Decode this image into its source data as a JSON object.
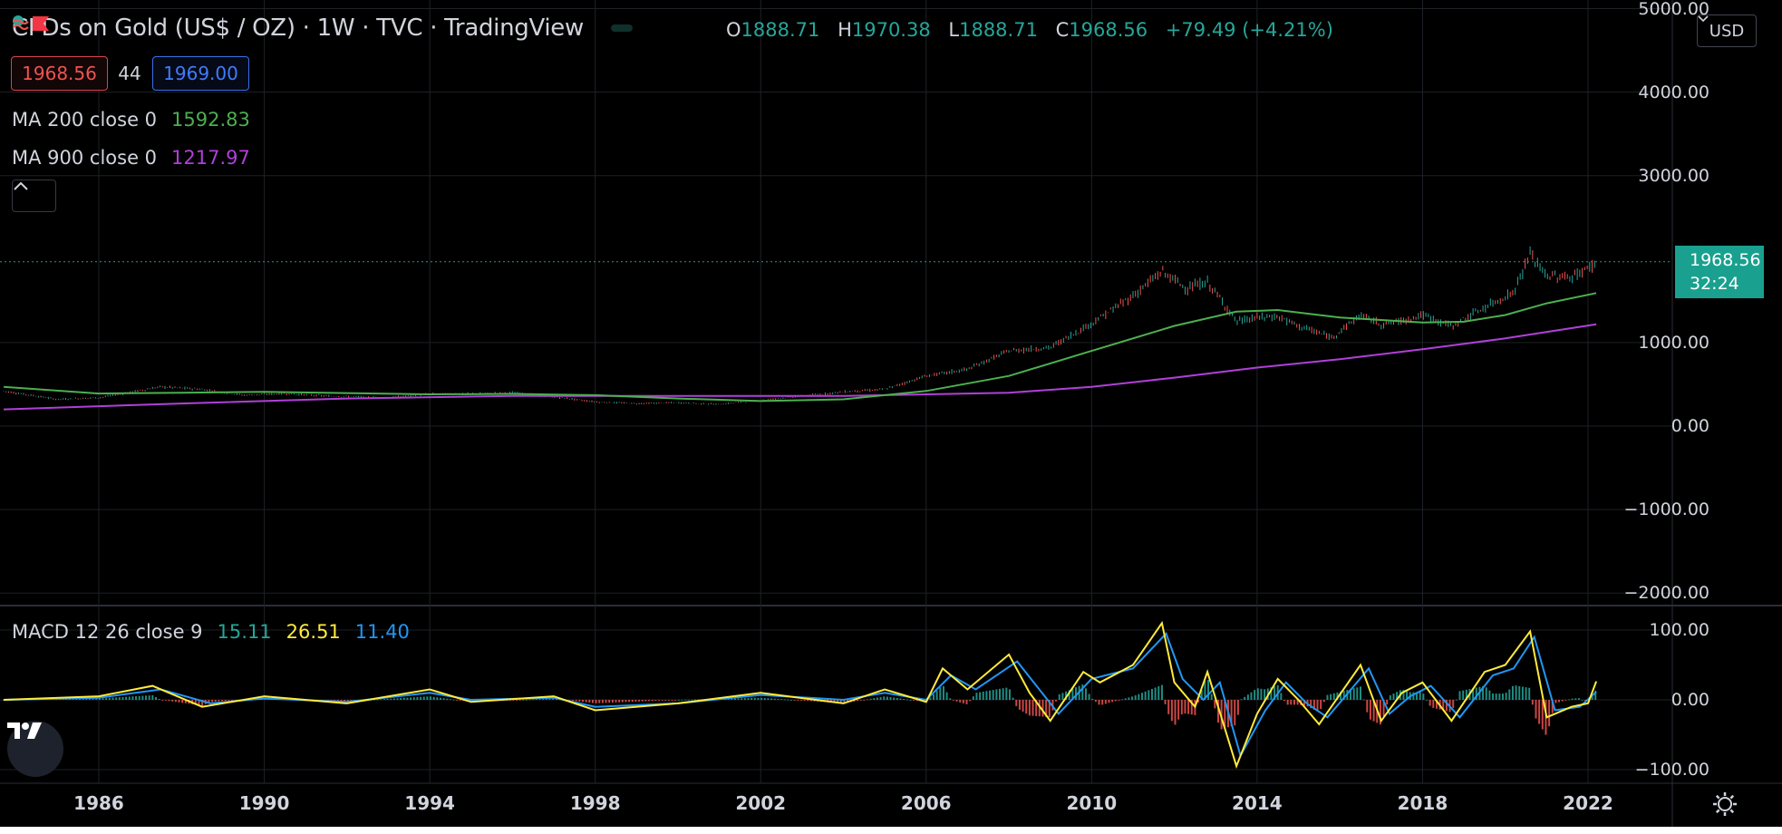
{
  "header": {
    "symbol": "CFDs on Gold (US$ / OZ)",
    "sep1": "·",
    "interval": "1W",
    "sep2": "·",
    "exchange": "TVC",
    "sep3": "·",
    "provider": "TradingView",
    "ohlc": {
      "o_key": "O",
      "o_val": "1888.71",
      "h_key": "H",
      "h_val": "1970.38",
      "l_key": "L",
      "l_val": "1888.71",
      "c_key": "C",
      "c_val": "1968.56",
      "change": "+79.49 (+4.21%)"
    }
  },
  "trade": {
    "sell": "1968.56",
    "spread": "44",
    "buy": "1969.00"
  },
  "indicators": [
    {
      "label": "MA 200 close 0",
      "value": "1592.83",
      "color": "#4caf50"
    },
    {
      "label": "MA 900 close 0",
      "value": "1217.97",
      "color": "#b040d8"
    }
  ],
  "macd": {
    "label": "MACD 12 26 close 9",
    "hist": "15.11",
    "macd": "26.51",
    "signal": "11.40",
    "hist_color": "#26a69a",
    "macd_color": "#ffeb3b",
    "signal_color": "#2196f3"
  },
  "currency": "USD",
  "price_tag": {
    "price": "1968.56",
    "countdown": "32:24",
    "color": "#1aa08f"
  },
  "icons": {
    "flag": "flag-icon",
    "dot": "market-status-dot-icon",
    "approx": "approx-icon",
    "collapse": "chevron-up-icon",
    "logo": "tradingview-logo-icon",
    "settings": "gear-icon"
  },
  "colors": {
    "background": "#000000",
    "grid": "#1e2126",
    "text": "#d1d4dc",
    "up": "#26a69a",
    "down": "#ef5350",
    "ma200": "#4caf50",
    "ma900": "#b040d8"
  },
  "chart_data": [
    {
      "type": "line",
      "title": "CFDs on Gold (US$ / OZ) · 1W · TVC · TradingView",
      "xlabel": "",
      "ylabel": "",
      "x_ticks": [
        "1986",
        "1990",
        "1994",
        "1998",
        "2002",
        "2006",
        "2010",
        "2014",
        "2018",
        "2022"
      ],
      "y_ticks": [
        "5000.00",
        "4000.00",
        "3000.00",
        "1000.00",
        "0.00",
        "−1000.00",
        "−2000.00"
      ],
      "ylim": [
        -2000,
        5000
      ],
      "xlim": [
        1983.7,
        2022.4
      ],
      "grid": true,
      "series": [
        {
          "name": "",
          "role": "price",
          "points": [
            [
              1983.7,
              420
            ],
            [
              1985,
              320
            ],
            [
              1986,
              340
            ],
            [
              1987.5,
              470
            ],
            [
              1988.5,
              440
            ],
            [
              1989.5,
              370
            ],
            [
              1990.5,
              390
            ],
            [
              1991.5,
              360
            ],
            [
              1993,
              340
            ],
            [
              1994,
              385
            ],
            [
              1995,
              385
            ],
            [
              1996,
              400
            ],
            [
              1997,
              350
            ],
            [
              1998,
              290
            ],
            [
              1999,
              270
            ],
            [
              2000,
              280
            ],
            [
              2001,
              260
            ],
            [
              2002,
              310
            ],
            [
              2003,
              360
            ],
            [
              2004,
              410
            ],
            [
              2005,
              440
            ],
            [
              2006,
              600
            ],
            [
              2007,
              680
            ],
            [
              2008,
              900
            ],
            [
              2009,
              940
            ],
            [
              2010,
              1230
            ],
            [
              2011,
              1560
            ],
            [
              2011.7,
              1850
            ],
            [
              2012.3,
              1650
            ],
            [
              2012.8,
              1720
            ],
            [
              2013.3,
              1400
            ],
            [
              2013.5,
              1250
            ],
            [
              2014,
              1300
            ],
            [
              2014.5,
              1310
            ],
            [
              2015,
              1200
            ],
            [
              2015.8,
              1060
            ],
            [
              2016.5,
              1330
            ],
            [
              2017,
              1220
            ],
            [
              2017.5,
              1260
            ],
            [
              2018,
              1330
            ],
            [
              2018.7,
              1200
            ],
            [
              2019.5,
              1420
            ],
            [
              2020.2,
              1600
            ],
            [
              2020.6,
              2060
            ],
            [
              2021,
              1800
            ],
            [
              2021.6,
              1780
            ],
            [
              2022,
              1890
            ],
            [
              2022.2,
              1968.56
            ]
          ]
        },
        {
          "name": "MA 200 close 0",
          "color": "#4caf50",
          "points": [
            [
              1983.7,
              470
            ],
            [
              1986,
              390
            ],
            [
              1988,
              400
            ],
            [
              1990,
              410
            ],
            [
              1992,
              395
            ],
            [
              1994,
              380
            ],
            [
              1996,
              385
            ],
            [
              1998,
              370
            ],
            [
              2000,
              330
            ],
            [
              2002,
              300
            ],
            [
              2004,
              320
            ],
            [
              2006,
              420
            ],
            [
              2008,
              600
            ],
            [
              2010,
              900
            ],
            [
              2012,
              1200
            ],
            [
              2013.5,
              1370
            ],
            [
              2014.5,
              1390
            ],
            [
              2016,
              1300
            ],
            [
              2017,
              1270
            ],
            [
              2018,
              1240
            ],
            [
              2019,
              1250
            ],
            [
              2020,
              1330
            ],
            [
              2021,
              1470
            ],
            [
              2022.2,
              1592.83
            ]
          ]
        },
        {
          "name": "MA 900 close 0",
          "color": "#b040d8",
          "points": [
            [
              1983.7,
              200
            ],
            [
              1988,
              270
            ],
            [
              1992,
              330
            ],
            [
              1996,
              360
            ],
            [
              2000,
              360
            ],
            [
              2004,
              360
            ],
            [
              2008,
              400
            ],
            [
              2010,
              470
            ],
            [
              2012,
              580
            ],
            [
              2014,
              700
            ],
            [
              2016,
              800
            ],
            [
              2018,
              920
            ],
            [
              2020,
              1050
            ],
            [
              2022.2,
              1217.97
            ]
          ]
        }
      ]
    },
    {
      "type": "line",
      "title": "MACD 12 26 close 9",
      "ylim": [
        -100,
        100
      ],
      "y_ticks": [
        "100.00",
        "0.00",
        "−100.00"
      ],
      "grid": true,
      "series": [
        {
          "name": "",
          "role": "macd",
          "color": "#ffeb3b",
          "points": [
            [
              1983.7,
              0
            ],
            [
              1986,
              5
            ],
            [
              1987.3,
              20
            ],
            [
              1988.5,
              -10
            ],
            [
              1990,
              5
            ],
            [
              1992,
              -5
            ],
            [
              1994,
              15
            ],
            [
              1995,
              -3
            ],
            [
              1997,
              5
            ],
            [
              1998,
              -15
            ],
            [
              2000,
              -5
            ],
            [
              2002,
              10
            ],
            [
              2004,
              -5
            ],
            [
              2005,
              15
            ],
            [
              2006,
              -3
            ],
            [
              2006.4,
              45
            ],
            [
              2007,
              15
            ],
            [
              2008,
              65
            ],
            [
              2008.5,
              10
            ],
            [
              2009,
              -30
            ],
            [
              2009.8,
              40
            ],
            [
              2010.2,
              25
            ],
            [
              2011,
              50
            ],
            [
              2011.7,
              110
            ],
            [
              2012,
              25
            ],
            [
              2012.5,
              -10
            ],
            [
              2012.8,
              40
            ],
            [
              2013.5,
              -95
            ],
            [
              2014,
              -20
            ],
            [
              2014.5,
              30
            ],
            [
              2015,
              0
            ],
            [
              2015.5,
              -35
            ],
            [
              2016.5,
              50
            ],
            [
              2017,
              -30
            ],
            [
              2017.5,
              10
            ],
            [
              2018,
              25
            ],
            [
              2018.7,
              -30
            ],
            [
              2019.5,
              40
            ],
            [
              2020,
              50
            ],
            [
              2020.6,
              98
            ],
            [
              2021,
              -25
            ],
            [
              2021.6,
              -10
            ],
            [
              2022,
              -5
            ],
            [
              2022.2,
              26.51
            ]
          ]
        },
        {
          "name": "",
          "role": "signal",
          "color": "#2196f3",
          "points": [
            [
              1983.7,
              0
            ],
            [
              1986,
              3
            ],
            [
              1987.5,
              15
            ],
            [
              1988.7,
              -5
            ],
            [
              1990,
              2
            ],
            [
              1992,
              -3
            ],
            [
              1994,
              10
            ],
            [
              1995,
              0
            ],
            [
              1997,
              3
            ],
            [
              1998,
              -10
            ],
            [
              2000,
              -5
            ],
            [
              2002,
              7
            ],
            [
              2004,
              0
            ],
            [
              2005,
              10
            ],
            [
              2006,
              0
            ],
            [
              2006.6,
              35
            ],
            [
              2007.2,
              15
            ],
            [
              2008.2,
              55
            ],
            [
              2008.8,
              10
            ],
            [
              2009.2,
              -20
            ],
            [
              2010,
              30
            ],
            [
              2011,
              45
            ],
            [
              2011.8,
              95
            ],
            [
              2012.2,
              30
            ],
            [
              2012.7,
              0
            ],
            [
              2013.1,
              25
            ],
            [
              2013.6,
              -80
            ],
            [
              2014.2,
              -15
            ],
            [
              2014.7,
              25
            ],
            [
              2015.2,
              -5
            ],
            [
              2015.7,
              -25
            ],
            [
              2016.7,
              45
            ],
            [
              2017.2,
              -20
            ],
            [
              2017.7,
              5
            ],
            [
              2018.2,
              20
            ],
            [
              2018.9,
              -25
            ],
            [
              2019.7,
              35
            ],
            [
              2020.2,
              45
            ],
            [
              2020.7,
              90
            ],
            [
              2021.2,
              -15
            ],
            [
              2021.8,
              -10
            ],
            [
              2022.2,
              11.4
            ]
          ]
        }
      ],
      "histogram": {
        "last": 15.11
      }
    }
  ]
}
